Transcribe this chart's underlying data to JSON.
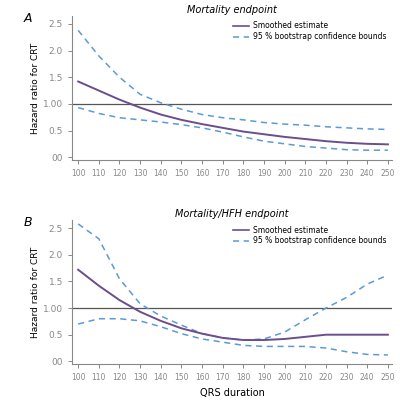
{
  "title_A": "Mortality endpoint",
  "title_B": "Mortality/HFH endpoint",
  "xlabel": "QRS duration",
  "ylabel": "Hazard ratio for CRT",
  "legend_smooth": "Smoothed estimate",
  "legend_ci": "95 % bootstrap confidence bounds",
  "xmin": 97,
  "xmax": 252,
  "xticks": [
    100,
    110,
    120,
    130,
    140,
    150,
    160,
    170,
    180,
    190,
    200,
    210,
    220,
    230,
    240,
    250
  ],
  "ytick_labels": [
    "00",
    "0.5",
    "1.00",
    "1.5",
    "2.0",
    "2.5"
  ],
  "ytick_values": [
    0.0,
    0.5,
    1.0,
    1.5,
    2.0,
    2.5
  ],
  "ymin": -0.05,
  "ymax": 2.65,
  "color_smooth": "#6b4e8a",
  "color_ci": "#5b9bd5",
  "hline_color": "#555555",
  "panel_A_smooth_x": [
    100,
    110,
    120,
    130,
    140,
    150,
    160,
    170,
    180,
    190,
    200,
    210,
    220,
    230,
    240,
    250
  ],
  "panel_A_smooth_y": [
    1.42,
    1.25,
    1.08,
    0.93,
    0.8,
    0.7,
    0.62,
    0.55,
    0.48,
    0.43,
    0.38,
    0.34,
    0.3,
    0.27,
    0.25,
    0.24
  ],
  "panel_A_upper_y": [
    2.38,
    1.9,
    1.5,
    1.18,
    1.02,
    0.9,
    0.8,
    0.74,
    0.7,
    0.65,
    0.62,
    0.6,
    0.57,
    0.55,
    0.53,
    0.52
  ],
  "panel_A_lower_y": [
    0.93,
    0.82,
    0.74,
    0.7,
    0.66,
    0.61,
    0.55,
    0.47,
    0.38,
    0.3,
    0.25,
    0.2,
    0.17,
    0.14,
    0.13,
    0.13
  ],
  "panel_B_smooth_x": [
    100,
    110,
    120,
    130,
    140,
    150,
    160,
    170,
    180,
    190,
    200,
    210,
    220,
    230,
    240,
    250
  ],
  "panel_B_smooth_y": [
    1.72,
    1.42,
    1.15,
    0.93,
    0.76,
    0.62,
    0.52,
    0.44,
    0.4,
    0.4,
    0.42,
    0.46,
    0.5,
    0.5,
    0.5,
    0.5
  ],
  "panel_B_upper_y": [
    2.58,
    2.3,
    1.55,
    1.08,
    0.85,
    0.68,
    0.52,
    0.44,
    0.4,
    0.42,
    0.55,
    0.78,
    1.0,
    1.2,
    1.45,
    1.62
  ],
  "panel_B_lower_y": [
    0.7,
    0.8,
    0.8,
    0.76,
    0.65,
    0.52,
    0.42,
    0.36,
    0.3,
    0.28,
    0.28,
    0.28,
    0.25,
    0.18,
    0.13,
    0.12
  ],
  "background_color": "#ffffff",
  "spine_color": "#888888",
  "tick_color": "#888888"
}
